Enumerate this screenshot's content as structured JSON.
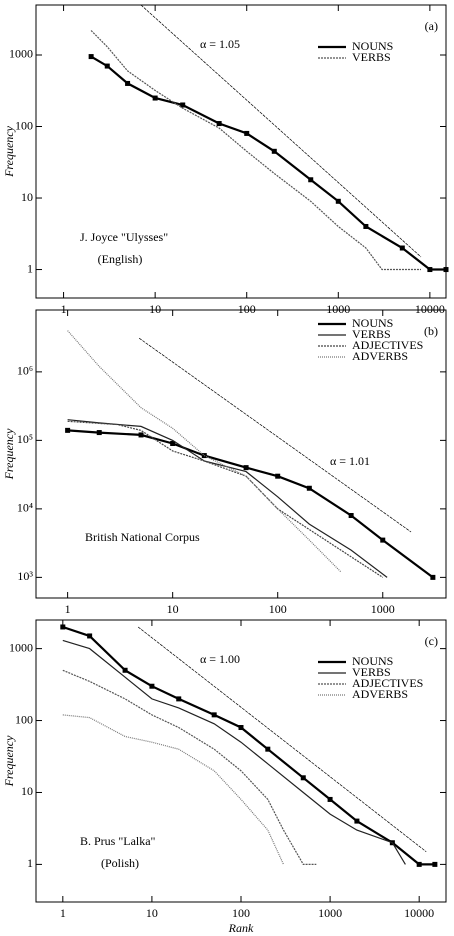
{
  "chart_data": [
    {
      "type": "line",
      "panel_label": "(a)",
      "y_label": "Frequency",
      "log_x": true,
      "log_y": true,
      "xlim": [
        0.5,
        15000
      ],
      "xticks": [
        1,
        10,
        100,
        1000,
        10000
      ],
      "ylim": [
        0.4,
        5000
      ],
      "yticks": [
        1,
        10,
        100,
        1000
      ],
      "annotation": "α = 1.05",
      "note": "J. Joyce \"Ulysses\"",
      "note2": "(English)",
      "reference_line": {
        "x": [
          7,
          8000
        ],
        "values": [
          5000,
          1.5
        ]
      },
      "series": [
        {
          "name": "NOUNS",
          "color": "#000000",
          "marker": "square",
          "dash": "",
          "x": [
            2,
            3,
            5,
            10,
            20,
            50,
            100,
            200,
            500,
            1000,
            2000,
            5000,
            10000,
            15000
          ],
          "values": [
            950,
            700,
            400,
            250,
            200,
            110,
            80,
            45,
            18,
            9,
            4,
            2,
            1,
            1
          ]
        },
        {
          "name": "VERBS",
          "color": "#555555",
          "marker": "",
          "dash": "2,1",
          "x": [
            2,
            3,
            5,
            10,
            20,
            50,
            100,
            200,
            500,
            1000,
            2000,
            3000,
            8000
          ],
          "values": [
            2200,
            1300,
            600,
            320,
            180,
            95,
            45,
            22,
            9,
            4,
            2,
            1,
            1
          ]
        }
      ]
    },
    {
      "type": "line",
      "panel_label": "(b)",
      "y_label": "Frequency",
      "log_x": true,
      "log_y": true,
      "xlim": [
        0.5,
        4000
      ],
      "xticks": [
        1,
        10,
        100,
        1000
      ],
      "ylim": [
        500,
        8000000
      ],
      "yticks": [
        {
          "value": 1000,
          "label": "10³"
        },
        {
          "value": 10000,
          "label": "10⁴"
        },
        {
          "value": 100000,
          "label": "10⁵"
        },
        {
          "value": 1000000,
          "label": "10⁶"
        }
      ],
      "annotation": "α = 1.01",
      "note": "British National Corpus",
      "reference_line": {
        "x": [
          4.8,
          1860
        ],
        "values": [
          3100000,
          4600
        ]
      },
      "series": [
        {
          "name": "NOUNS",
          "color": "#000000",
          "marker": "square",
          "dash": "",
          "x": [
            1,
            2,
            5,
            10,
            20,
            50,
            100,
            200,
            500,
            1000,
            3000
          ],
          "values": [
            140000,
            130000,
            120000,
            90000,
            60000,
            40000,
            30000,
            20000,
            8000,
            3500,
            1000
          ]
        },
        {
          "name": "VERBS",
          "color": "#222222",
          "marker": "",
          "dash": "",
          "x": [
            1,
            2,
            5,
            10,
            20,
            50,
            100,
            200,
            500,
            1100
          ],
          "values": [
            200000,
            180000,
            160000,
            100000,
            50000,
            35000,
            15000,
            6000,
            2500,
            1000
          ]
        },
        {
          "name": "ADJECTIVES",
          "color": "#444444",
          "marker": "",
          "dash": "2,1",
          "x": [
            1,
            3,
            5,
            10,
            20,
            50,
            100,
            200,
            500,
            1000
          ],
          "values": [
            190000,
            170000,
            140000,
            70000,
            50000,
            30000,
            10000,
            5000,
            2000,
            1000
          ]
        },
        {
          "name": "ADVERBS",
          "color": "#777777",
          "marker": "",
          "dash": "1,1",
          "x": [
            1,
            2,
            5,
            10,
            20,
            50,
            100,
            200,
            400
          ],
          "values": [
            4000000,
            1200000,
            300000,
            150000,
            60000,
            30000,
            10000,
            3500,
            1200
          ]
        }
      ]
    },
    {
      "type": "line",
      "panel_label": "(c)",
      "y_label": "Frequency",
      "x_label": "Rank",
      "log_x": true,
      "log_y": true,
      "xlim": [
        0.5,
        20000
      ],
      "xticks": [
        1,
        10,
        100,
        1000,
        10000
      ],
      "ylim": [
        0.3,
        2500
      ],
      "yticks": [
        1,
        10,
        100,
        1000
      ],
      "annotation": "α = 1.00",
      "note": "B. Prus \"Lalka\"",
      "note2": "(Polish)",
      "reference_line": {
        "x": [
          7,
          12000
        ],
        "values": [
          2000,
          1.5
        ]
      },
      "series": [
        {
          "name": "NOUNS",
          "color": "#000000",
          "marker": "square",
          "dash": "",
          "x": [
            1,
            2,
            5,
            10,
            20,
            50,
            100,
            200,
            500,
            1000,
            2000,
            5000,
            10000,
            15000
          ],
          "values": [
            2000,
            1500,
            500,
            300,
            200,
            120,
            80,
            40,
            16,
            8,
            4,
            2,
            1,
            1
          ]
        },
        {
          "name": "VERBS",
          "color": "#222222",
          "marker": "",
          "dash": "",
          "x": [
            1,
            2,
            5,
            10,
            20,
            50,
            100,
            200,
            500,
            1000,
            2000,
            5000,
            7000
          ],
          "values": [
            1300,
            1000,
            400,
            200,
            150,
            90,
            50,
            25,
            10,
            5,
            3,
            2,
            1
          ]
        },
        {
          "name": "ADJECTIVES",
          "color": "#555555",
          "marker": "",
          "dash": "2,1",
          "x": [
            1,
            2,
            5,
            10,
            20,
            50,
            100,
            200,
            300,
            500,
            700
          ],
          "values": [
            500,
            350,
            200,
            120,
            80,
            40,
            20,
            8,
            3,
            1,
            1
          ]
        },
        {
          "name": "ADVERBS",
          "color": "#777777",
          "marker": "",
          "dash": "1,1",
          "x": [
            1,
            2,
            5,
            10,
            20,
            50,
            100,
            200,
            300
          ],
          "values": [
            120,
            110,
            60,
            50,
            40,
            20,
            8,
            3,
            1
          ]
        }
      ]
    }
  ]
}
